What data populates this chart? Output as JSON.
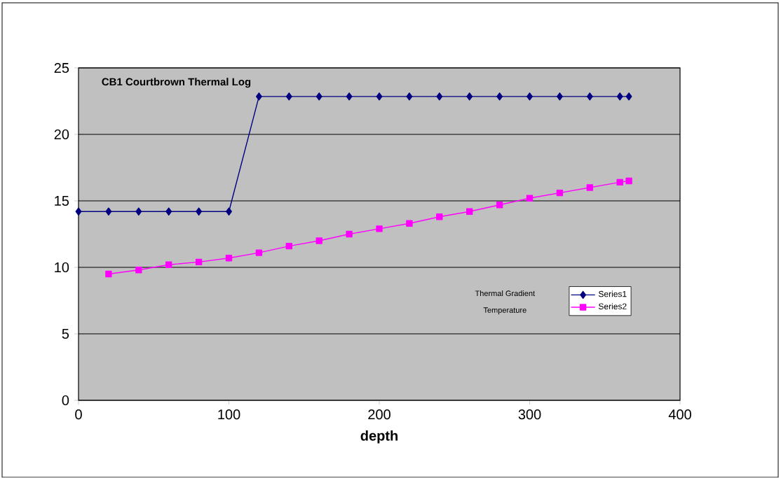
{
  "chart_data": {
    "type": "line",
    "title": "CB1 Courtbrown Thermal Log",
    "xlabel": "depth",
    "annotations": [
      "Thermal Gradient",
      "Temperature"
    ],
    "xlim": [
      0,
      400
    ],
    "xticks": [
      0,
      100,
      200,
      300,
      400
    ],
    "ylim": [
      0,
      25
    ],
    "yticks": [
      0,
      5,
      10,
      15,
      20,
      25
    ],
    "grid": "y",
    "legend": "right",
    "line_style": "solid",
    "series": [
      {
        "name": "Series1",
        "color": "#000080",
        "marker": "diamond",
        "x": [
          0,
          20,
          40,
          60,
          80,
          100,
          120,
          140,
          160,
          180,
          200,
          220,
          240,
          260,
          280,
          300,
          320,
          340,
          360,
          366
        ],
        "values": [
          14.2,
          14.2,
          14.2,
          14.2,
          14.2,
          14.2,
          22.85,
          22.85,
          22.85,
          22.85,
          22.85,
          22.85,
          22.85,
          22.85,
          22.85,
          22.85,
          22.85,
          22.85,
          22.85,
          22.85
        ]
      },
      {
        "name": "Series2",
        "color": "#ff00ff",
        "marker": "square",
        "x": [
          20,
          40,
          60,
          80,
          100,
          120,
          140,
          160,
          180,
          200,
          220,
          240,
          260,
          280,
          300,
          320,
          340,
          360,
          366
        ],
        "values": [
          9.5,
          9.8,
          10.2,
          10.4,
          10.7,
          11.1,
          11.6,
          12.0,
          12.5,
          12.9,
          13.3,
          13.8,
          14.2,
          14.7,
          15.2,
          15.6,
          16.0,
          16.4,
          16.5
        ]
      }
    ]
  }
}
